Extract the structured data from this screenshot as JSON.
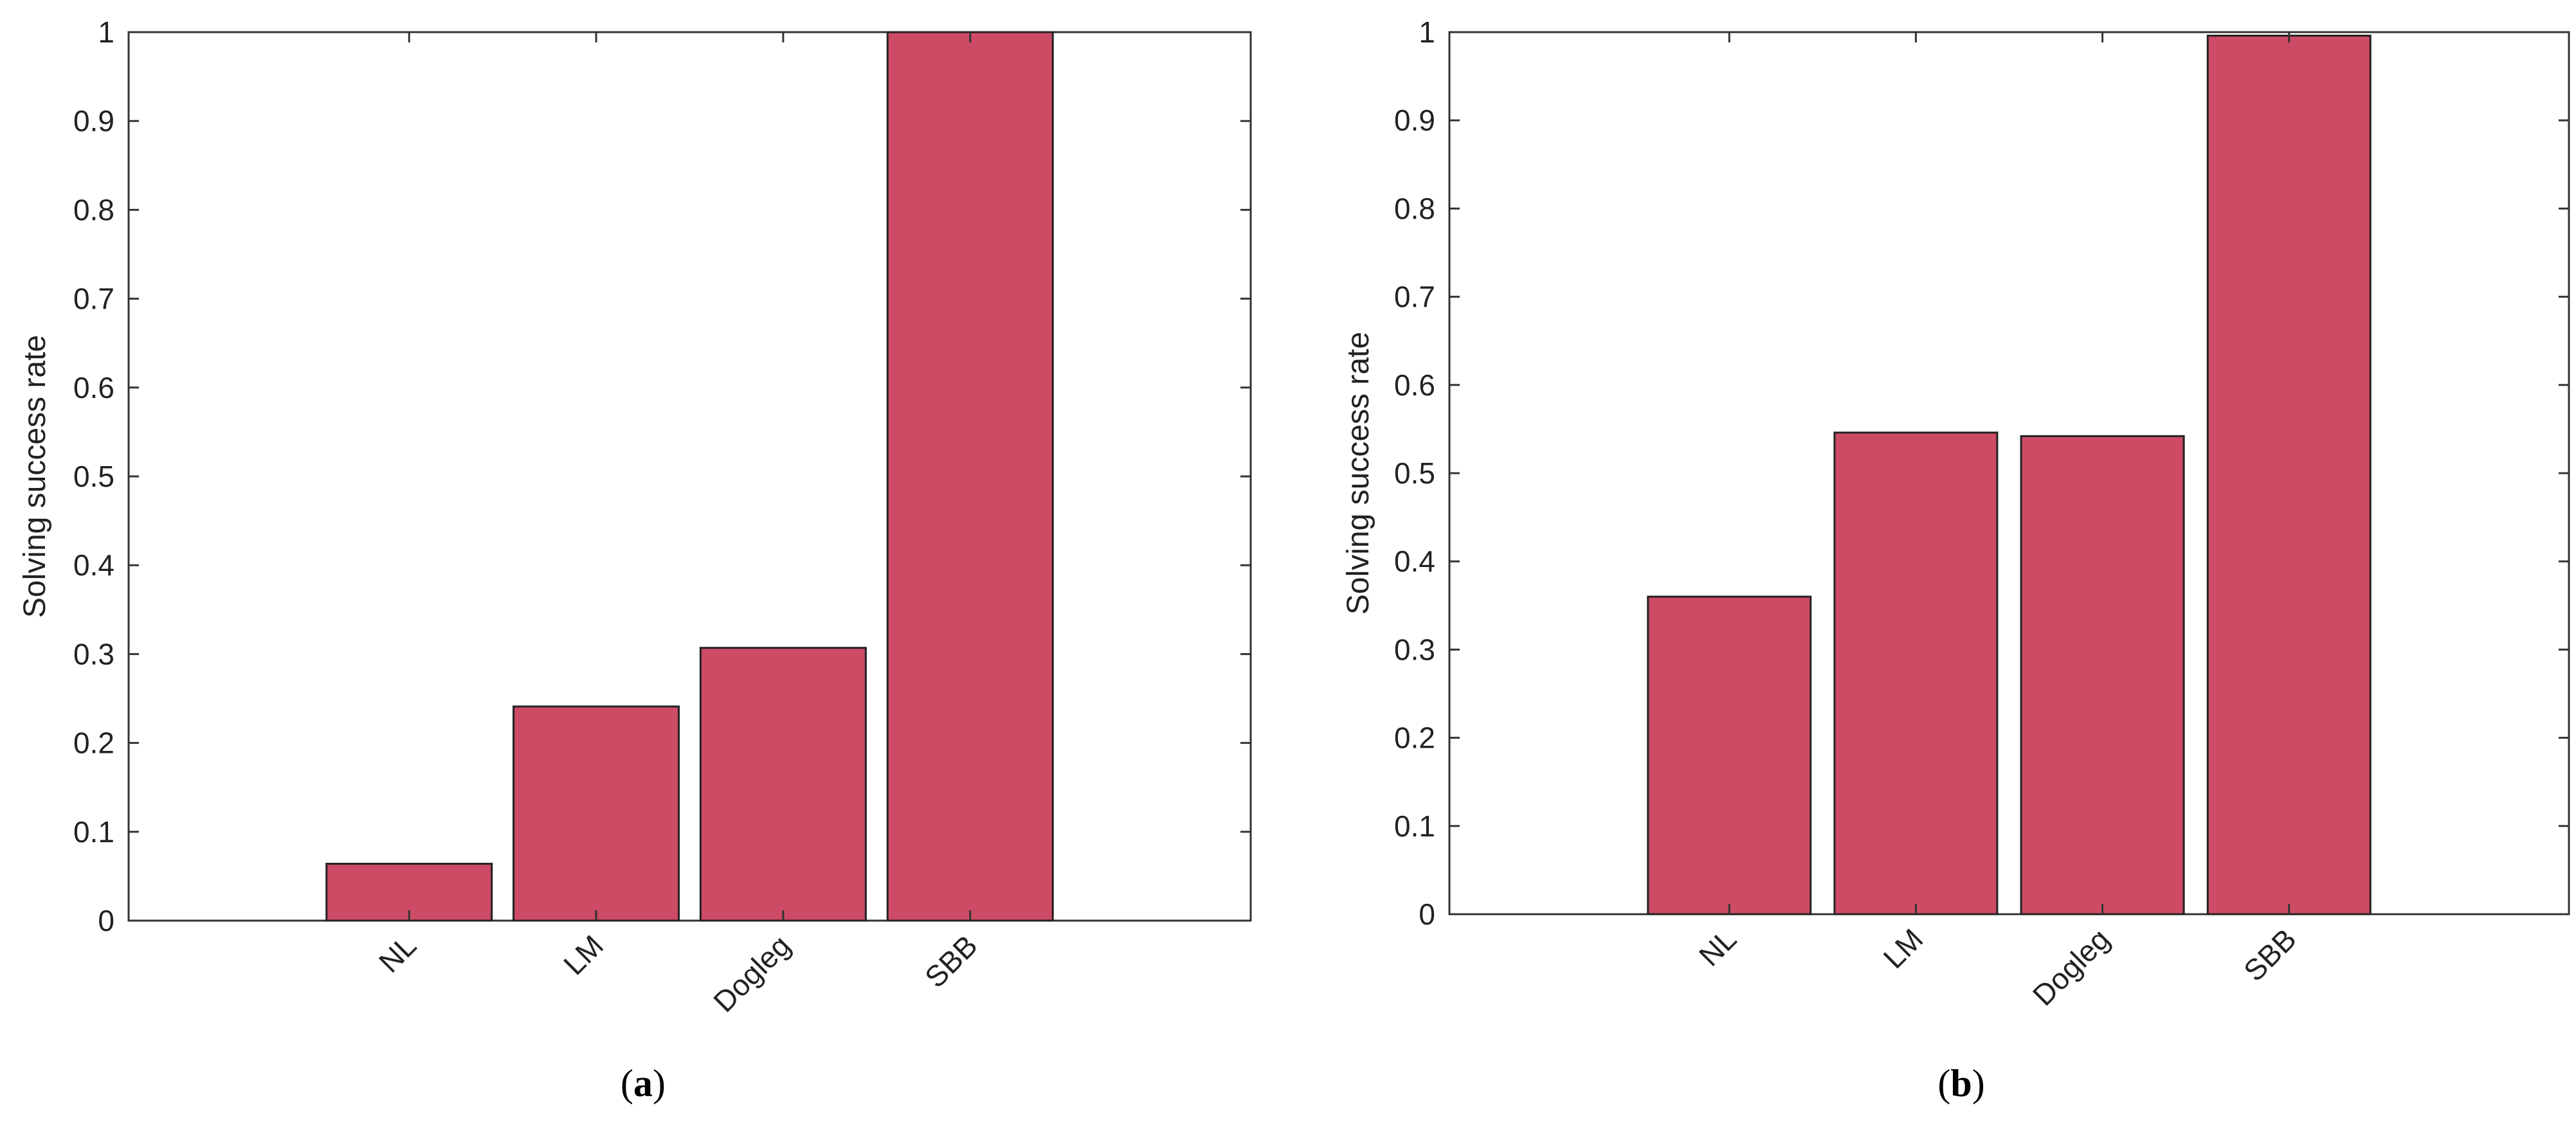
{
  "chart_data": [
    {
      "type": "bar",
      "panel": "(a)",
      "categories": [
        "NL",
        "LM",
        "Dogleg",
        "SBB"
      ],
      "values": [
        0.064,
        0.241,
        0.307,
        1.0
      ],
      "title": "",
      "xlabel": "",
      "ylabel": "Solving success rate",
      "ylim": [
        0,
        1
      ],
      "yticks": [
        "0",
        "0.1",
        "0.2",
        "0.3",
        "0.4",
        "0.5",
        "0.6",
        "0.7",
        "0.8",
        "0.9",
        "1"
      ],
      "grid": false,
      "bar_color": "#cd4b65"
    },
    {
      "type": "bar",
      "panel": "(b)",
      "categories": [
        "NL",
        "LM",
        "Dogleg",
        "SBB"
      ],
      "values": [
        0.36,
        0.546,
        0.542,
        0.996
      ],
      "title": "",
      "xlabel": "",
      "ylabel": "Solving success rate",
      "ylim": [
        0,
        1
      ],
      "yticks": [
        "0",
        "0.1",
        "0.2",
        "0.3",
        "0.4",
        "0.5",
        "0.6",
        "0.7",
        "0.8",
        "0.9",
        "1"
      ],
      "grid": false,
      "bar_color": "#cd4b65"
    }
  ]
}
